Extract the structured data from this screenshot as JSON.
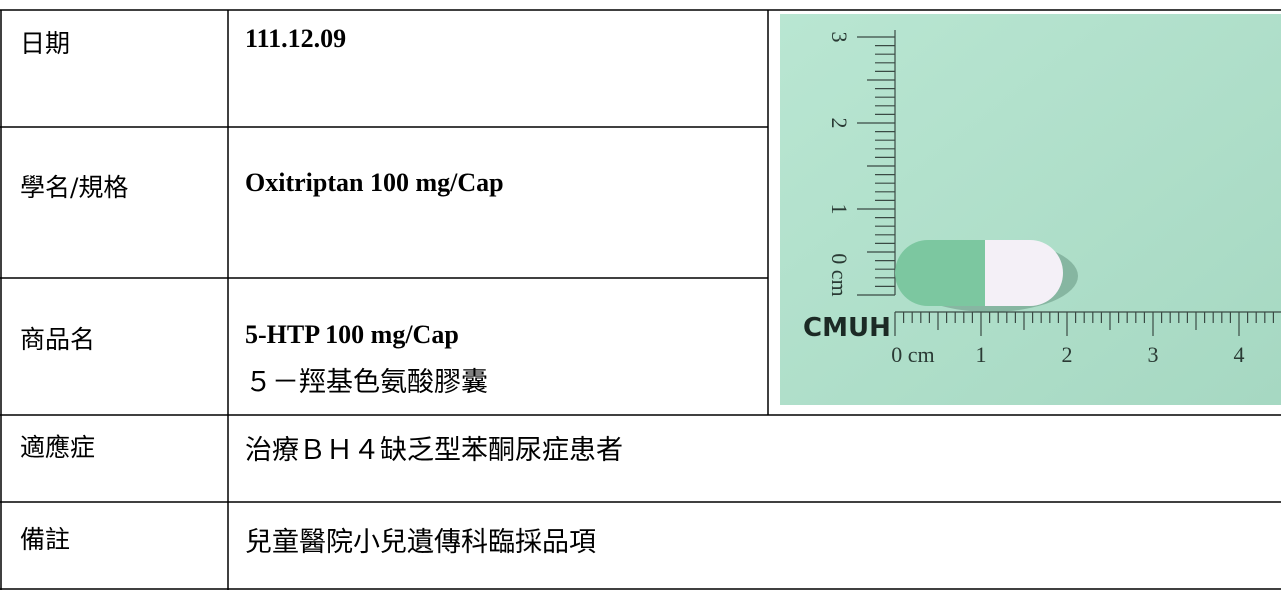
{
  "table": {
    "rows": [
      [
        "日期",
        "111.12.09"
      ],
      [
        "學名/規格",
        "Oxitriptan 100 mg/Cap"
      ],
      [
        "商品名",
        "5-HTP 100 mg/Cap",
        "５－羥基色氨酸膠囊"
      ],
      [
        "適應症",
        "治療ＢＨ４缺乏型苯酮尿症患者"
      ],
      [
        "備註",
        "兒童醫院小兒遺傳科臨採品項"
      ]
    ]
  },
  "photo": {
    "brand": "CMUH",
    "horizontal_scale": [
      "0 cm",
      "1",
      "2",
      "3",
      "4"
    ],
    "vertical_scale": [
      "3",
      "2",
      "1",
      "0 cm"
    ]
  }
}
